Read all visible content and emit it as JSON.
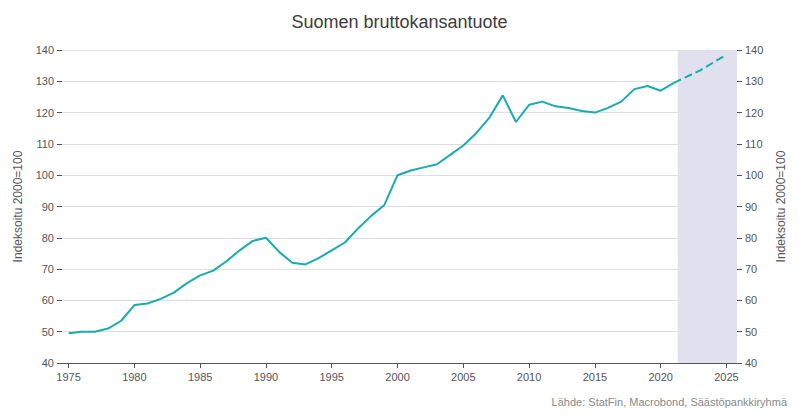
{
  "chart_data": {
    "type": "line",
    "title": "Suomen bruttokansantuote",
    "ylabel": "Indeksoitu 2000=100",
    "y2label": "Indeksoitu 2000=100",
    "source": "Lähde: StatFin, Macrobond, Säästöpankkiryhmä",
    "xlim": [
      1974.5,
      2025.8
    ],
    "xticks": [
      1975,
      1980,
      1985,
      1990,
      1995,
      2000,
      2005,
      2010,
      2015,
      2020,
      2025
    ],
    "ylim": [
      40,
      140
    ],
    "yticks": [
      40,
      50,
      60,
      70,
      80,
      90,
      100,
      110,
      120,
      130,
      140
    ],
    "y2lim": [
      40,
      140
    ],
    "y2ticks": [
      40,
      50,
      60,
      70,
      80,
      90,
      100,
      110,
      120,
      130,
      140
    ],
    "grid": true,
    "shading": {
      "from": 2021.3,
      "color": "#e0e0ee"
    },
    "series": [
      {
        "color": "#1aabab",
        "line_style": "solid",
        "x": [
          1975,
          1976,
          1977,
          1978,
          1979,
          1980,
          1981,
          1982,
          1983,
          1984,
          1985,
          1986,
          1987,
          1988,
          1989,
          1990,
          1991,
          1992,
          1993,
          1994,
          1995,
          1996,
          1997,
          1998,
          1999,
          2000,
          2001,
          2002,
          2003,
          2004,
          2005,
          2006,
          2007,
          2008,
          2009,
          2010,
          2011,
          2012,
          2013,
          2014,
          2015,
          2016,
          2017,
          2018,
          2019,
          2020,
          2021
        ],
        "values": [
          49.5,
          50.0,
          50.0,
          51.0,
          53.5,
          58.5,
          59.0,
          60.5,
          62.5,
          65.5,
          68.0,
          69.5,
          72.5,
          76.0,
          79.0,
          80.0,
          75.5,
          72.0,
          71.5,
          73.5,
          76.0,
          78.5,
          83.0,
          87.0,
          90.5,
          100.0,
          101.5,
          102.5,
          103.5,
          106.5,
          109.5,
          113.5,
          118.5,
          125.5,
          117.0,
          122.5,
          123.5,
          122.0,
          121.5,
          120.5,
          120.0,
          121.5,
          123.5,
          127.5,
          128.5,
          127.0,
          129.5
        ]
      },
      {
        "color": "#1aabab",
        "line_style": "dashed",
        "x": [
          2021,
          2022,
          2023,
          2024,
          2025
        ],
        "values": [
          129.5,
          131.5,
          133.5,
          136.0,
          138.5
        ]
      }
    ]
  }
}
